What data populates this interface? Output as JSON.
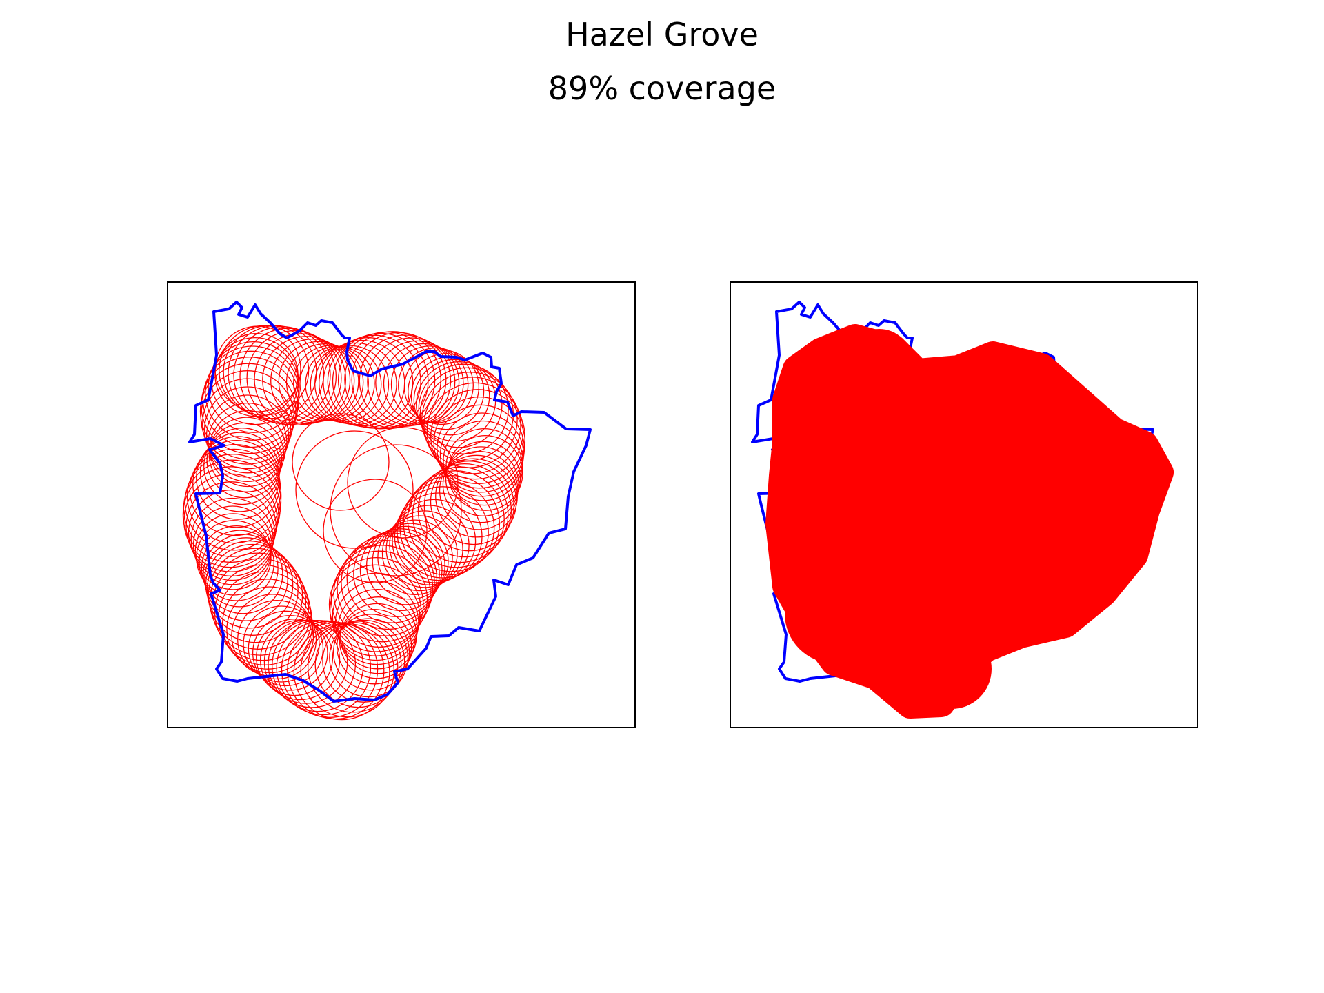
{
  "figure": {
    "title": "Hazel Grove",
    "subtitle": "89% coverage"
  },
  "colors": {
    "boundary": "#0000ff",
    "coverage": "#ff0000",
    "frame": "#000000",
    "background": "#ffffff"
  },
  "panels": [
    {
      "name": "circle-outlines",
      "style": "outline",
      "coverage_circle_count": 146,
      "boundary_color": "#0000ff",
      "coverage_color": "#ff0000"
    },
    {
      "name": "filled-coverage",
      "style": "filled",
      "boundary_color": "#0000ff",
      "coverage_color": "#ff0000"
    }
  ],
  "coverage_percent": 89
}
